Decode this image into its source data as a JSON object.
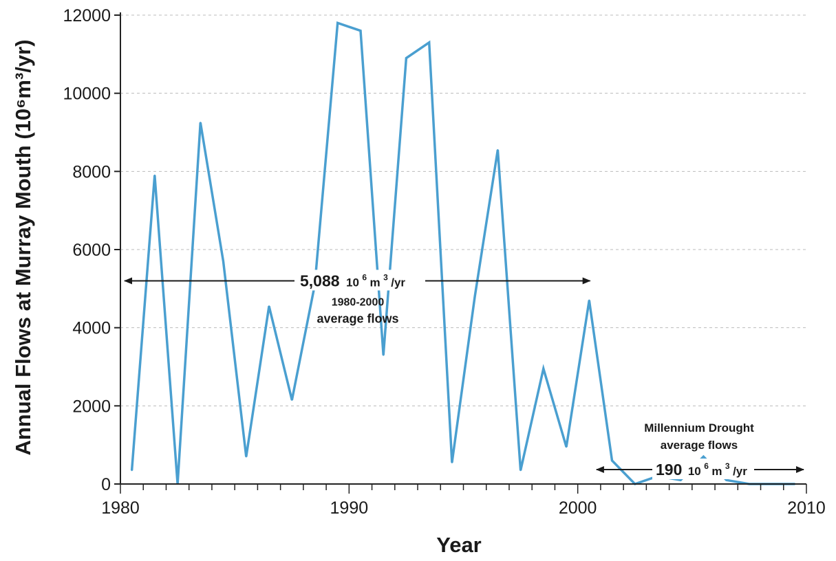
{
  "chart_data": {
    "type": "line",
    "xlabel": "Year",
    "ylabel": "Annual Flows at Murray Mouth (10⁶m³/yr)",
    "xlim": [
      1980,
      2010
    ],
    "ylim": [
      0,
      12000
    ],
    "xticks": [
      1980,
      1990,
      2000,
      2010
    ],
    "yticks": [
      0,
      2000,
      4000,
      6000,
      8000,
      10000,
      12000
    ],
    "grid": "horizontal dashed",
    "colors": {
      "line": "#4a9fd0",
      "grid": "#bbbbbb",
      "axis": "#222222"
    },
    "series": [
      {
        "x": [
          1980.5,
          1981.5,
          1982.5,
          1983.5,
          1984.5,
          1985.5,
          1986.5,
          1987.5,
          1988.5,
          1989.5,
          1990.5,
          1991.5,
          1992.5,
          1993.5,
          1994.5,
          1995.5,
          1996.5,
          1997.5,
          1998.5,
          1999.5,
          2000.5,
          2001.5,
          2002.5,
          2003.5,
          2004.5,
          2005.5,
          2006.5,
          2007.5,
          2008.5,
          2009.5
        ],
        "values": [
          350,
          7900,
          0,
          9250,
          5700,
          700,
          4550,
          2150,
          5100,
          11800,
          11600,
          3300,
          10900,
          11300,
          550,
          4800,
          8550,
          350,
          2950,
          950,
          4700,
          600,
          0,
          200,
          100,
          700,
          100,
          0,
          0,
          0
        ]
      }
    ],
    "annotations": [
      {
        "value": "5,088",
        "unit_base": "10",
        "unit_exp": "6",
        "unit_m": "m",
        "unit_exp2": "3",
        "unit_rest": "/yr",
        "caption_lines": [
          "1980-2000",
          "average flows"
        ],
        "x_from": 1980,
        "x_to": 2000,
        "y": 5200
      },
      {
        "value": "190",
        "unit_base": "10",
        "unit_exp": "6",
        "unit_m": "m",
        "unit_exp2": "3",
        "unit_rest": "/yr",
        "caption_lines": [
          "Millennium Drought",
          "average flows"
        ],
        "x_from": 2001,
        "x_to": 2010,
        "y": 190
      }
    ]
  }
}
